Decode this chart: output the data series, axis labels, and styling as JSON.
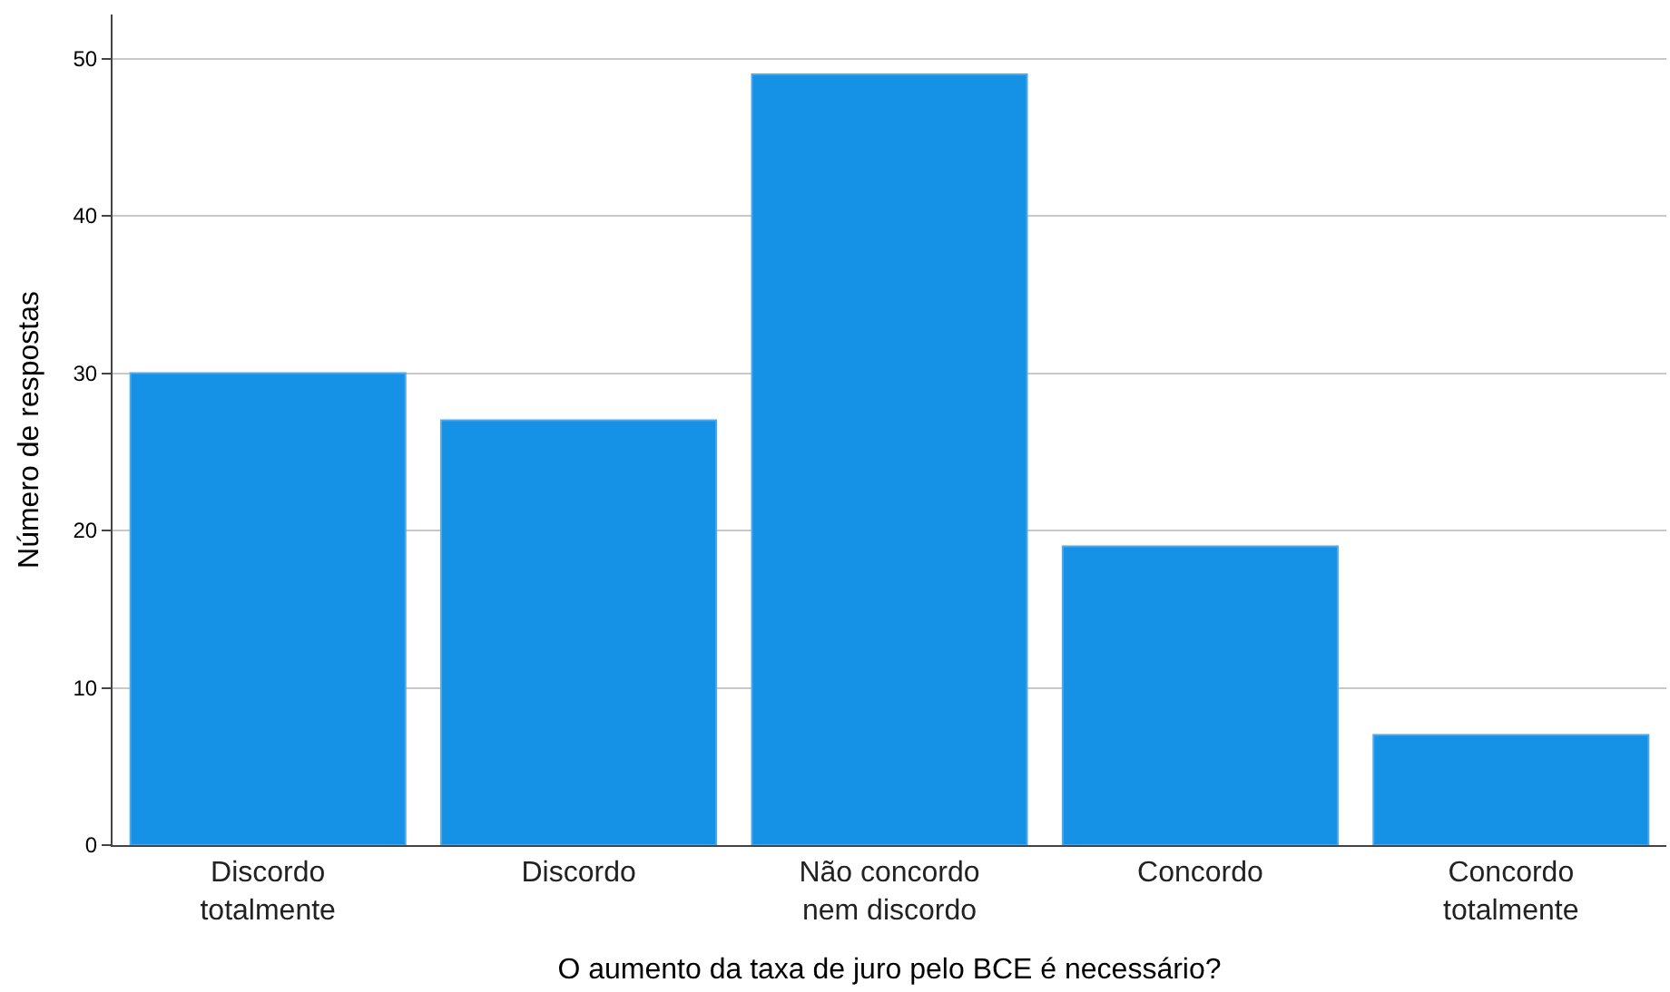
{
  "chart_data": {
    "type": "bar",
    "xlabel": "O aumento da taxa de juro pelo BCE é necessário?",
    "ylabel": "Número de respostas",
    "categories": [
      "Discordo\ntotalmente",
      "Discordo",
      "Não concordo\nnem discordo",
      "Concordo",
      "Concordo\ntotalmente"
    ],
    "values": [
      30,
      27,
      49,
      19,
      7
    ],
    "color": "#1591e6",
    "ylim": [
      0,
      52.8
    ],
    "yticks": [
      0,
      10,
      20,
      30,
      40,
      50
    ],
    "grid": "y"
  }
}
